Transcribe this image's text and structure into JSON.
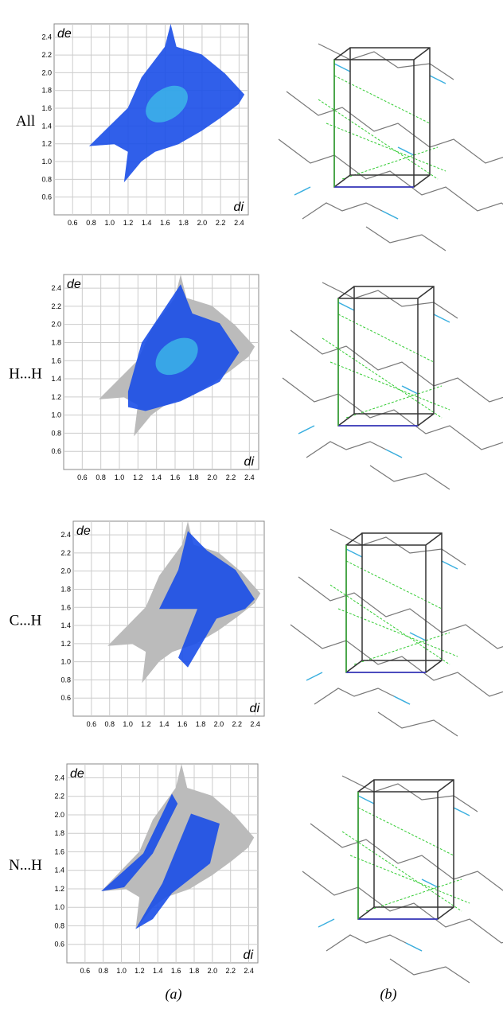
{
  "figure": {
    "axes": {
      "x_label": "di",
      "y_label": "de",
      "xlim": [
        0.4,
        2.5
      ],
      "ylim": [
        0.4,
        2.55
      ],
      "xticks": [
        0.6,
        0.8,
        {
          "value": 1,
          "label": "1.0"
        },
        1.2,
        1.4,
        1.6,
        1.8,
        {
          "value": 2,
          "label": "2.0"
        },
        2.2,
        2.4
      ],
      "yticks": [
        0.6,
        0.8,
        {
          "value": 1,
          "label": "1.0"
        },
        1.2,
        1.4,
        1.6,
        1.8,
        {
          "value": 2,
          "label": "2.0"
        },
        2.2,
        2.4
      ]
    },
    "panels": [
      {
        "label": "All"
      },
      {
        "label": "H...H"
      },
      {
        "label": "C...H"
      },
      {
        "label": "N...H"
      }
    ],
    "captions": [
      "(a)",
      "(b)"
    ]
  }
}
